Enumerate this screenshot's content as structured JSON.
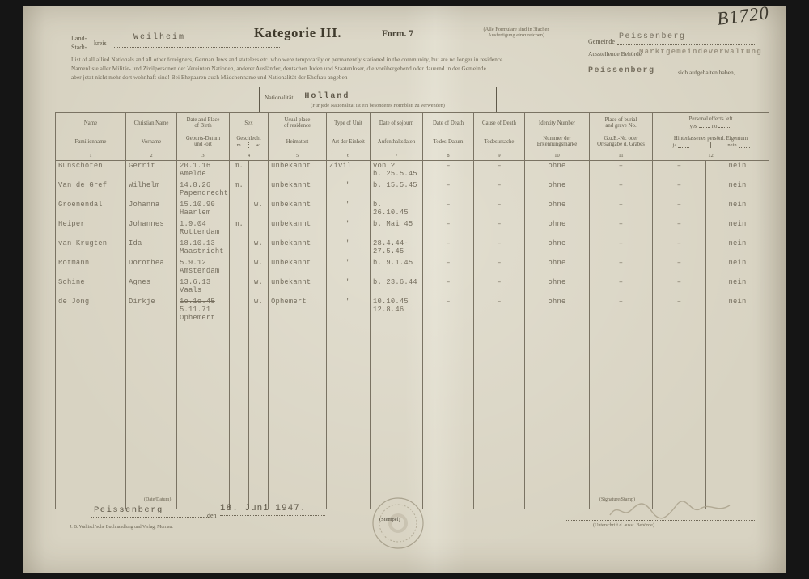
{
  "page": {
    "handwritten_ref": "B1720"
  },
  "header": {
    "title": "Kategorie III.",
    "form_no": "Form. 7",
    "district": {
      "label_top": "Land-",
      "label_bottom": "Stadt-",
      "label_right": "kreis",
      "value": "Weilheim"
    },
    "copies_note": "(Alle Formulare sind in 3facher\nAusfertigung einzureichen)",
    "gemeinde": {
      "label": "Gemeinde",
      "value": "Peissenberg"
    },
    "behoerde": {
      "label": "Ausstellende Behörde",
      "value": "Marktgemeindeverwaltung",
      "place": "Peissenberg",
      "suffix": "sich aufgehalten haben,"
    },
    "intro_en": "List of all allied Nationals and all other foreigners, German Jews and stateless etc. who were temporarily or permanently stationed in the community, but are no longer in residence.",
    "intro_de": "Namenliste aller Militär- und Zivilpersonen der Vereinten Nationen, anderer Ausländer, deutschen Juden und Staatenloser, die vorübergehend oder dauernd in der Gemeinde",
    "intro_de2": "aber jetzt nicht mehr dort wohnhaft sind! Bei Ehepaaren auch Mädchenname und Nationalität der Ehefrau angeben",
    "nationality": {
      "label": "Nationalität",
      "value": "Holland",
      "note": "(Für jede Nationalität ist ein besonderes Formblatt zu verwenden)"
    }
  },
  "table": {
    "columns": [
      {
        "en": "Name",
        "de": "Familienname",
        "num": "1"
      },
      {
        "en": "Christian Name",
        "de": "Vorname",
        "num": "2"
      },
      {
        "en": "Date and Place\nof Birth",
        "de": "Geburts-Datum\nund -ort",
        "num": "3"
      },
      {
        "en": "Sex",
        "de": "Geschlecht",
        "sub_m": "m.",
        "sub_w": "w.",
        "num": "4"
      },
      {
        "en": "Usual place\nof residence",
        "de": "Heimatort",
        "num": "5"
      },
      {
        "en": "Type of Unit",
        "de": "Art der Einheit",
        "num": "6"
      },
      {
        "en": "Date of sojourn",
        "de": "Aufenthaltsdaten",
        "num": "7"
      },
      {
        "en": "Date of Death",
        "de": "Todes-Datum",
        "num": "8"
      },
      {
        "en": "Cause of Death",
        "de": "Todesursache",
        "num": "9"
      },
      {
        "en": "Identity Number",
        "de": "Nummer der\nErkennungsmarke",
        "num": "10"
      },
      {
        "en": "Place of burial\nand grave No.",
        "de": "G.u.E.-Nr. oder\nOrtsangabe d. Grabes",
        "num": "11"
      },
      {
        "en": "Personal effects left",
        "en_yes": "yes",
        "en_no": "no",
        "de": "Hinterlassenes persönl. Eigentum",
        "sub_ja": "ja",
        "sub_nein": "nein",
        "num": "12"
      }
    ],
    "rows": [
      {
        "name": "Bunschoten",
        "vorname": "Gerrit",
        "birth": "20.1.16\nAmelde",
        "m": "m.",
        "w": "",
        "heimat": "unbekannt",
        "einheit": "Zivil",
        "stay": "von ?\nb. 25.5.45",
        "death": "–",
        "cause": "–",
        "idnum": "ohne",
        "grave": "–",
        "ja": "–",
        "nein": "nein"
      },
      {
        "name": "Van de Gref",
        "vorname": "Wilhelm",
        "birth": "14.8.26\nPapendrecht",
        "m": "m.",
        "w": "",
        "heimat": "unbekannt",
        "einheit": "\"",
        "stay": "b. 15.5.45",
        "death": "–",
        "cause": "–",
        "idnum": "ohne",
        "grave": "–",
        "ja": "–",
        "nein": "nein"
      },
      {
        "name": "Groenendal",
        "vorname": "Johanna",
        "birth": "15.10.90\nHaarlem",
        "m": "",
        "w": "w.",
        "heimat": "unbekannt",
        "einheit": "\"",
        "stay": "b. 26.10.45",
        "death": "–",
        "cause": "–",
        "idnum": "ohne",
        "grave": "–",
        "ja": "–",
        "nein": "nein"
      },
      {
        "name": "Heiper",
        "vorname": "Johannes",
        "birth": "1.9.04\nRotterdam",
        "m": "m.",
        "w": "",
        "heimat": "unbekannt",
        "einheit": "\"",
        "stay": "b. Mai 45",
        "death": "–",
        "cause": "–",
        "idnum": "ohne",
        "grave": "–",
        "ja": "–",
        "nein": "nein"
      },
      {
        "name": "van Krugten",
        "vorname": "Ida",
        "birth": "18.10.13\nMaastricht",
        "m": "",
        "w": "w.",
        "heimat": "unbekannt",
        "einheit": "\"",
        "stay": "28.4.44-\n27.5.45",
        "death": "–",
        "cause": "–",
        "idnum": "ohne",
        "grave": "–",
        "ja": "–",
        "nein": "nein"
      },
      {
        "name": "Rotmann",
        "vorname": "Dorothea",
        "birth": "5.9.12\nAmsterdam",
        "m": "",
        "w": "w.",
        "heimat": "unbekannt",
        "einheit": "\"",
        "stay": "b. 9.1.45",
        "death": "–",
        "cause": "–",
        "idnum": "ohne",
        "grave": "–",
        "ja": "–",
        "nein": "nein"
      },
      {
        "name": "Schine",
        "vorname": "Agnes",
        "birth": "13.6.13\nVaals",
        "m": "",
        "w": "w.",
        "heimat": "unbekannt",
        "einheit": "\"",
        "stay": "b. 23.6.44",
        "death": "–",
        "cause": "–",
        "idnum": "ohne",
        "grave": "–",
        "ja": "–",
        "nein": "nein"
      },
      {
        "name": "de Jong",
        "vorname": "Dirkje",
        "birth_struck": "1o.1o.45",
        "birth": "5.11.71\nOphemert",
        "m": "",
        "w": "w.",
        "heimat": "Ophemert",
        "einheit": "\"",
        "stay": "10.10.45\n12.8.46",
        "death": "–",
        "cause": "–",
        "idnum": "ohne",
        "grave": "–",
        "ja": "–",
        "nein": "nein"
      }
    ]
  },
  "footer": {
    "date_label": "(Date/Datum)",
    "place": "Peissenberg",
    "den": ", den",
    "date": "18. Juni 1947.",
    "print_credit": "J. B. Wallisch'sche Buchhandlung und Verlag, Murnau.",
    "stamp_label": "(Stempel)",
    "signature_label": "(Signature/Stamp)",
    "signature_sub": "(Unterschrift d. ausst. Behörde)"
  }
}
